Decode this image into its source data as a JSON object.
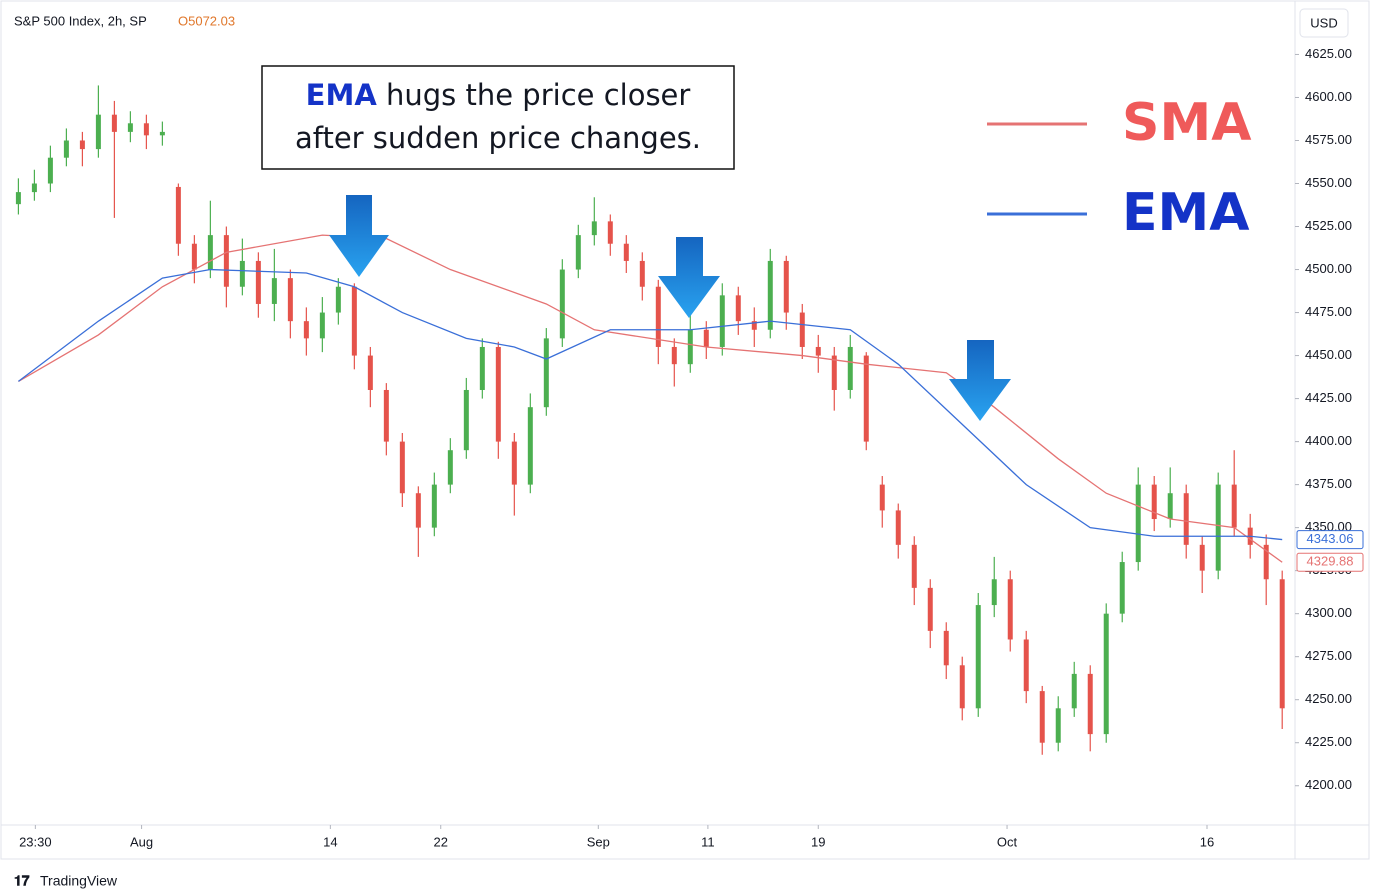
{
  "chart_data": {
    "type": "candlestick",
    "title": "S&P 500 Index, 2h, SP",
    "open_label": "O5072.03",
    "currency": "USD",
    "brand": "TradingView",
    "annotation": {
      "highlight": "EMA",
      "line1": "hugs the price closer",
      "line2": "after sudden price changes."
    },
    "up_color": "#4caf50",
    "down_color": "#e5534b",
    "xlim": [
      -0.4,
      79.8
    ],
    "xticks": [
      {
        "value": 1.06,
        "label": "23:30"
      },
      {
        "value": 7.7,
        "label": "Aug"
      },
      {
        "value": 19.5,
        "label": "14"
      },
      {
        "value": 26.4,
        "label": "22"
      },
      {
        "value": 36.25,
        "label": "Sep"
      },
      {
        "value": 43.1,
        "label": "11"
      },
      {
        "value": 50,
        "label": "19"
      },
      {
        "value": 61.8,
        "label": "Oct"
      },
      {
        "value": 74.3,
        "label": "16"
      }
    ],
    "ylim": [
      4158,
      4652
    ],
    "yticks": [
      {
        "value": 4200,
        "label": "4200.00"
      },
      {
        "value": 4225,
        "label": "4225.00"
      },
      {
        "value": 4250,
        "label": "4250.00"
      },
      {
        "value": 4275,
        "label": "4275.00"
      },
      {
        "value": 4300,
        "label": "4300.00"
      },
      {
        "value": 4325,
        "label": "4325.00"
      },
      {
        "value": 4350,
        "label": "4350.00"
      },
      {
        "value": 4375,
        "label": "4375.00"
      },
      {
        "value": 4400,
        "label": "4400.00"
      },
      {
        "value": 4425,
        "label": "4425.00"
      },
      {
        "value": 4450,
        "label": "4450.00"
      },
      {
        "value": 4475,
        "label": "4475.00"
      },
      {
        "value": 4500,
        "label": "4500.00"
      },
      {
        "value": 4525,
        "label": "4525.00"
      },
      {
        "value": 4550,
        "label": "4550.00"
      },
      {
        "value": 4575,
        "label": "4575.00"
      },
      {
        "value": 4600,
        "label": "4600.00"
      },
      {
        "value": 4625,
        "label": "4625.00"
      }
    ],
    "open": [
      4538,
      4545,
      4550,
      4565,
      4575,
      4570,
      4590,
      4580,
      4585,
      4578,
      4548,
      4515,
      4500,
      4520,
      4490,
      4505,
      4480,
      4495,
      4470,
      4460,
      4475,
      4490,
      4450,
      4430,
      4400,
      4370,
      4350,
      4375,
      4395,
      4430,
      4455,
      4400,
      4375,
      4420,
      4460,
      4500,
      4520,
      4528,
      4515,
      4505,
      4490,
      4455,
      4445,
      4465,
      4455,
      4485,
      4470,
      4465,
      4505,
      4475,
      4455,
      4450,
      4430,
      4450,
      4375,
      4360,
      4340,
      4315,
      4290,
      4270,
      4245,
      4305,
      4320,
      4285,
      4255,
      4225,
      4245,
      4265,
      4230,
      4300,
      4330,
      4375,
      4355,
      4370,
      4340,
      4325,
      4375,
      4350,
      4340,
      4320
    ],
    "high": [
      4553,
      4558,
      4572,
      4582,
      4580,
      4607,
      4598,
      4592,
      4590,
      4586,
      4550,
      4520,
      4540,
      4525,
      4518,
      4510,
      4512,
      4500,
      4478,
      4484,
      4495,
      4492,
      4455,
      4434,
      4405,
      4374,
      4382,
      4402,
      4437,
      4460,
      4458,
      4405,
      4428,
      4466,
      4506,
      4526,
      4542,
      4532,
      4520,
      4510,
      4494,
      4460,
      4475,
      4470,
      4492,
      4490,
      4478,
      4512,
      4508,
      4480,
      4462,
      4455,
      4462,
      4452,
      4380,
      4364,
      4345,
      4320,
      4295,
      4275,
      4312,
      4333,
      4325,
      4290,
      4258,
      4252,
      4272,
      4270,
      4306,
      4336,
      4385,
      4380,
      4385,
      4375,
      4345,
      4382,
      4395,
      4358,
      4346,
      4325
    ],
    "low": [
      4532,
      4540,
      4545,
      4560,
      4560,
      4565,
      4530,
      4574,
      4570,
      4572,
      4508,
      4492,
      4495,
      4478,
      4485,
      4472,
      4470,
      4460,
      4450,
      4452,
      4468,
      4442,
      4420,
      4392,
      4362,
      4333,
      4345,
      4370,
      4390,
      4425,
      4390,
      4357,
      4370,
      4415,
      4455,
      4495,
      4514,
      4508,
      4498,
      4482,
      4445,
      4432,
      4440,
      4448,
      4450,
      4462,
      4455,
      4460,
      4465,
      4448,
      4440,
      4418,
      4425,
      4395,
      4350,
      4332,
      4305,
      4280,
      4262,
      4238,
      4240,
      4298,
      4278,
      4248,
      4218,
      4220,
      4240,
      4220,
      4225,
      4295,
      4325,
      4348,
      4350,
      4332,
      4312,
      4320,
      4345,
      4332,
      4305,
      4233
    ],
    "close": [
      4545,
      4550,
      4565,
      4575,
      4570,
      4590,
      4580,
      4585,
      4578,
      4580,
      4515,
      4500,
      4520,
      4490,
      4505,
      4480,
      4495,
      4470,
      4460,
      4475,
      4490,
      4450,
      4430,
      4400,
      4370,
      4350,
      4375,
      4395,
      4430,
      4455,
      4400,
      4375,
      4420,
      4460,
      4500,
      4520,
      4528,
      4515,
      4505,
      4490,
      4455,
      4445,
      4465,
      4455,
      4485,
      4470,
      4465,
      4505,
      4475,
      4455,
      4450,
      4430,
      4455,
      4400,
      4360,
      4340,
      4315,
      4290,
      4270,
      4245,
      4305,
      4320,
      4285,
      4255,
      4225,
      4245,
      4265,
      4230,
      4300,
      4330,
      4375,
      4355,
      4370,
      4340,
      4325,
      4375,
      4350,
      4340,
      4320,
      4245
    ],
    "series": [
      {
        "name": "SMA",
        "color": "#e57373",
        "label_color": "#ef5a5a",
        "x": [
          0,
          5,
          9,
          13,
          19,
          23,
          27,
          33,
          36,
          43,
          49,
          53,
          58,
          61,
          65,
          68,
          72,
          76,
          79
        ],
        "values": [
          4435,
          4462,
          4490,
          4510,
          4520,
          4518,
          4500,
          4480,
          4465,
          4455,
          4450,
          4445,
          4440,
          4420,
          4390,
          4370,
          4355,
          4350,
          4329.88
        ]
      },
      {
        "name": "EMA",
        "color": "#3a6fd8",
        "label_color": "#1433c7",
        "x": [
          0,
          5,
          9,
          12,
          18,
          21,
          24,
          28,
          31,
          33,
          37,
          42,
          47,
          52,
          55,
          59,
          63,
          67,
          71,
          77,
          79
        ],
        "values": [
          4435,
          4470,
          4495,
          4500,
          4498,
          4490,
          4475,
          4460,
          4455,
          4448,
          4465,
          4465,
          4470,
          4465,
          4445,
          4410,
          4375,
          4350,
          4345,
          4345,
          4343.06
        ]
      }
    ]
  }
}
